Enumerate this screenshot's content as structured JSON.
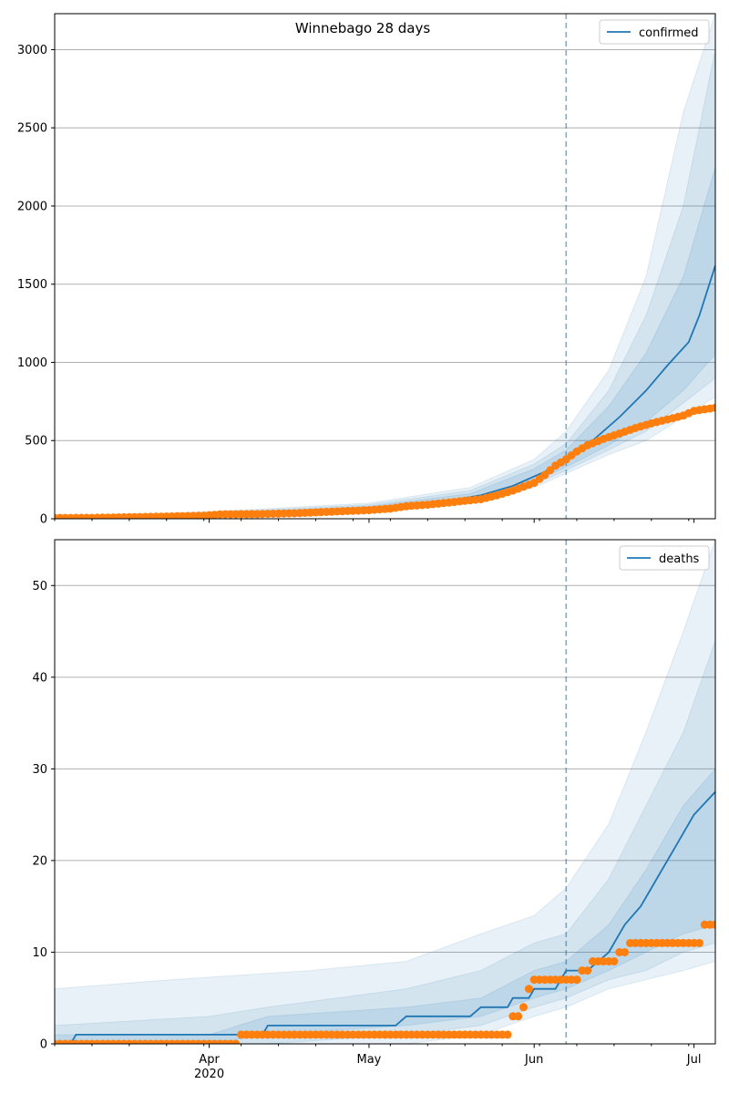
{
  "title": "Winnebago 28 days",
  "colors": {
    "model": "#1f77b4",
    "observed": "#ff7f0e",
    "band": "#1f77b4",
    "vline": "#1f77b4",
    "grid": "#b0b0b0"
  },
  "chart_data": [
    {
      "type": "line",
      "name": "confirmed-panel",
      "legend": "confirmed",
      "legend_position": "top-right",
      "x_range": [
        "2020-03-03",
        "2020-07-05"
      ],
      "ylim": [
        0,
        3230
      ],
      "yticks": [
        0,
        500,
        1000,
        1500,
        2000,
        2500,
        3000
      ],
      "grid": "y",
      "forecast_start": "2020-06-07",
      "median": [
        [
          "2020-03-03",
          5
        ],
        [
          "2020-03-15",
          8
        ],
        [
          "2020-03-25",
          15
        ],
        [
          "2020-04-01",
          25
        ],
        [
          "2020-04-15",
          35
        ],
        [
          "2020-04-25",
          50
        ],
        [
          "2020-05-05",
          75
        ],
        [
          "2020-05-15",
          110
        ],
        [
          "2020-05-22",
          150
        ],
        [
          "2020-05-28",
          210
        ],
        [
          "2020-06-03",
          300
        ],
        [
          "2020-06-07",
          390
        ],
        [
          "2020-06-12",
          500
        ],
        [
          "2020-06-17",
          650
        ],
        [
          "2020-06-22",
          820
        ],
        [
          "2020-06-26",
          980
        ],
        [
          "2020-06-30",
          1130
        ],
        [
          "2020-07-02",
          1300
        ],
        [
          "2020-07-05",
          1620
        ]
      ],
      "band_inner": [
        [
          "2020-03-03",
          3,
          8
        ],
        [
          "2020-04-01",
          20,
          32
        ],
        [
          "2020-05-01",
          55,
          80
        ],
        [
          "2020-05-20",
          120,
          160
        ],
        [
          "2020-06-01",
          240,
          320
        ],
        [
          "2020-06-07",
          330,
          440
        ],
        [
          "2020-06-15",
          470,
          720
        ],
        [
          "2020-06-22",
          620,
          1060
        ],
        [
          "2020-06-29",
          820,
          1550
        ],
        [
          "2020-07-05",
          1050,
          2250
        ]
      ],
      "band_mid": [
        [
          "2020-03-03",
          2,
          10
        ],
        [
          "2020-04-01",
          15,
          38
        ],
        [
          "2020-05-01",
          48,
          90
        ],
        [
          "2020-05-20",
          110,
          180
        ],
        [
          "2020-06-01",
          220,
          350
        ],
        [
          "2020-06-07",
          310,
          480
        ],
        [
          "2020-06-15",
          440,
          820
        ],
        [
          "2020-06-22",
          560,
          1300
        ],
        [
          "2020-06-29",
          740,
          2000
        ],
        [
          "2020-07-05",
          900,
          3000
        ]
      ],
      "band_outer": [
        [
          "2020-03-03",
          0,
          14
        ],
        [
          "2020-04-01",
          10,
          45
        ],
        [
          "2020-05-01",
          40,
          100
        ],
        [
          "2020-05-20",
          100,
          200
        ],
        [
          "2020-06-01",
          200,
          380
        ],
        [
          "2020-06-07",
          290,
          560
        ],
        [
          "2020-06-15",
          410,
          950
        ],
        [
          "2020-06-22",
          500,
          1550
        ],
        [
          "2020-06-29",
          650,
          2600
        ],
        [
          "2020-07-05",
          780,
          3230
        ]
      ],
      "observed": [
        [
          "2020-03-03",
          5
        ],
        [
          "2020-03-10",
          6
        ],
        [
          "2020-03-17",
          10
        ],
        [
          "2020-03-24",
          14
        ],
        [
          "2020-03-31",
          20
        ],
        [
          "2020-04-03",
          28
        ],
        [
          "2020-04-10",
          30
        ],
        [
          "2020-04-17",
          35
        ],
        [
          "2020-04-24",
          45
        ],
        [
          "2020-05-01",
          55
        ],
        [
          "2020-05-05",
          65
        ],
        [
          "2020-05-08",
          80
        ],
        [
          "2020-05-12",
          90
        ],
        [
          "2020-05-15",
          100
        ],
        [
          "2020-05-19",
          115
        ],
        [
          "2020-05-22",
          125
        ],
        [
          "2020-05-25",
          150
        ],
        [
          "2020-05-28",
          180
        ],
        [
          "2020-06-01",
          230
        ],
        [
          "2020-06-03",
          280
        ],
        [
          "2020-06-05",
          340
        ],
        [
          "2020-06-07",
          380
        ],
        [
          "2020-06-09",
          430
        ],
        [
          "2020-06-11",
          470
        ],
        [
          "2020-06-14",
          510
        ],
        [
          "2020-06-17",
          545
        ],
        [
          "2020-06-20",
          580
        ],
        [
          "2020-06-23",
          610
        ],
        [
          "2020-06-26",
          635
        ],
        [
          "2020-06-29",
          660
        ],
        [
          "2020-07-01",
          690
        ],
        [
          "2020-07-05",
          710
        ]
      ]
    },
    {
      "type": "line",
      "name": "deaths-panel",
      "legend": "deaths",
      "legend_position": "top-right",
      "x_range": [
        "2020-03-03",
        "2020-07-05"
      ],
      "ylim": [
        0,
        55
      ],
      "yticks": [
        0,
        10,
        20,
        30,
        40,
        50
      ],
      "grid": "y",
      "forecast_start": "2020-06-07",
      "xticks": [
        {
          "date": "2020-04-01",
          "label": "Apr"
        },
        {
          "date": "2020-05-01",
          "label": "May"
        },
        {
          "date": "2020-06-01",
          "label": "Jun"
        },
        {
          "date": "2020-07-01",
          "label": "Jul"
        }
      ],
      "year_label": "2020",
      "median": [
        [
          "2020-03-03",
          0
        ],
        [
          "2020-03-06",
          0
        ],
        [
          "2020-03-07",
          1
        ],
        [
          "2020-04-11",
          1
        ],
        [
          "2020-04-12",
          2
        ],
        [
          "2020-05-06",
          2
        ],
        [
          "2020-05-08",
          3
        ],
        [
          "2020-05-20",
          3
        ],
        [
          "2020-05-22",
          4
        ],
        [
          "2020-05-27",
          4
        ],
        [
          "2020-05-28",
          5
        ],
        [
          "2020-05-31",
          5
        ],
        [
          "2020-06-01",
          6
        ],
        [
          "2020-06-05",
          6
        ],
        [
          "2020-06-06",
          7
        ],
        [
          "2020-06-07",
          8
        ],
        [
          "2020-06-11",
          8
        ],
        [
          "2020-06-15",
          10
        ],
        [
          "2020-06-18",
          13
        ],
        [
          "2020-06-21",
          15
        ],
        [
          "2020-06-25",
          19
        ],
        [
          "2020-06-28",
          22
        ],
        [
          "2020-07-01",
          25
        ],
        [
          "2020-07-05",
          27.5
        ]
      ],
      "band_inner": [
        [
          "2020-03-03",
          0,
          1
        ],
        [
          "2020-04-01",
          0,
          1
        ],
        [
          "2020-04-12",
          1,
          3
        ],
        [
          "2020-05-08",
          2,
          4
        ],
        [
          "2020-05-22",
          3,
          5
        ],
        [
          "2020-06-01",
          5,
          8
        ],
        [
          "2020-06-07",
          6,
          9
        ],
        [
          "2020-06-15",
          8,
          13
        ],
        [
          "2020-06-22",
          10,
          19
        ],
        [
          "2020-06-29",
          12,
          26
        ],
        [
          "2020-07-05",
          13,
          30
        ]
      ],
      "band_mid": [
        [
          "2020-03-03",
          0,
          2
        ],
        [
          "2020-04-01",
          0,
          3
        ],
        [
          "2020-04-12",
          0,
          4
        ],
        [
          "2020-05-08",
          1,
          6
        ],
        [
          "2020-05-22",
          2,
          8
        ],
        [
          "2020-06-01",
          4,
          11
        ],
        [
          "2020-06-07",
          5,
          12
        ],
        [
          "2020-06-15",
          7,
          18
        ],
        [
          "2020-06-22",
          8,
          26
        ],
        [
          "2020-06-29",
          10,
          34
        ],
        [
          "2020-07-05",
          11,
          44
        ]
      ],
      "band_outer": [
        [
          "2020-03-03",
          0,
          6
        ],
        [
          "2020-03-25",
          0,
          7
        ],
        [
          "2020-04-20",
          0,
          8
        ],
        [
          "2020-05-08",
          0,
          9
        ],
        [
          "2020-05-22",
          1,
          12
        ],
        [
          "2020-06-01",
          3,
          14
        ],
        [
          "2020-06-07",
          4,
          17
        ],
        [
          "2020-06-15",
          6,
          24
        ],
        [
          "2020-06-22",
          7,
          34
        ],
        [
          "2020-06-29",
          8,
          45
        ],
        [
          "2020-07-05",
          9,
          55
        ]
      ],
      "observed": [
        [
          "2020-03-03",
          0
        ],
        [
          "2020-04-06",
          0
        ],
        [
          "2020-04-07",
          1
        ],
        [
          "2020-05-27",
          1
        ],
        [
          "2020-05-28",
          3
        ],
        [
          "2020-05-30",
          4
        ],
        [
          "2020-05-31",
          6
        ],
        [
          "2020-06-01",
          7
        ],
        [
          "2020-06-09",
          7
        ],
        [
          "2020-06-10",
          8
        ],
        [
          "2020-06-12",
          9
        ],
        [
          "2020-06-16",
          9
        ],
        [
          "2020-06-17",
          10
        ],
        [
          "2020-06-19",
          11
        ],
        [
          "2020-06-29",
          11
        ],
        [
          "2020-07-01",
          11
        ],
        [
          "2020-07-03",
          13
        ],
        [
          "2020-07-05",
          13
        ]
      ]
    }
  ]
}
